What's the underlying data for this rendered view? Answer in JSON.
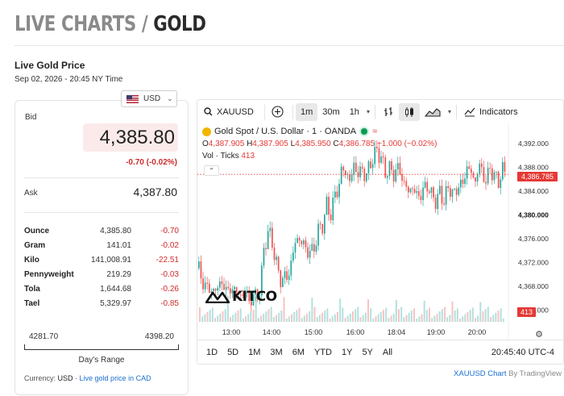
{
  "page": {
    "title_part1": "LIVE CHARTS / ",
    "title_part2": "GOLD"
  },
  "header": {
    "subtitle": "Live Gold Price",
    "date": "Sep 02, 2026 - 20:45 NY Time"
  },
  "currency_select": {
    "value": "USD"
  },
  "quote": {
    "bid_label": "Bid",
    "bid": "4,385.80",
    "change": "-0.70 (-0.02%)",
    "ask_label": "Ask",
    "ask": "4,387.80"
  },
  "units": [
    {
      "name": "Ounce",
      "value": "4,385.80",
      "change": "-0.70"
    },
    {
      "name": "Gram",
      "value": "141.01",
      "change": "-0.02"
    },
    {
      "name": "Kilo",
      "value": "141,008.91",
      "change": "-22.51"
    },
    {
      "name": "Pennyweight",
      "value": "219.29",
      "change": "-0.03"
    },
    {
      "name": "Tola",
      "value": "1,644.68",
      "change": "-0.26"
    },
    {
      "name": "Tael",
      "value": "5,329.97",
      "change": "-0.85"
    }
  ],
  "range": {
    "low": "4281.70",
    "high": "4398.20",
    "label": "Day's Range"
  },
  "currency_footer": {
    "prefix": "Currency: ",
    "currency": "USD",
    "sep": " · ",
    "link": "Live gold price in CAD"
  },
  "widget": {
    "symbol": "XAUUSD",
    "intervals": [
      "1m",
      "30m",
      "1h"
    ],
    "active_interval": "1m",
    "indicators_label": "Indicators",
    "legend_title": "Gold Spot / U.S. Dollar · 1 · OANDA",
    "ohlc": {
      "o_label": "O",
      "o": "4,387.905",
      "h_label": "H",
      "h": "4,387.905",
      "l_label": "L",
      "l": "4,385.950",
      "c_label": "C",
      "c": "4,386.785",
      "change": "−1.000 (−0.02%)"
    },
    "volume_label": "Vol · Ticks",
    "volume_value": "413",
    "current_price_tag": "4,386.785",
    "volume_tag": "413",
    "logo": "KITCO",
    "range_buttons": [
      "1D",
      "5D",
      "1M",
      "3M",
      "6M",
      "YTD",
      "1Y",
      "5Y",
      "All"
    ],
    "clock": "20:45:40 UTC-4",
    "colors": {
      "up": "#26a69a",
      "down": "#ef5350",
      "accent": "#e53935"
    }
  },
  "attribution": {
    "link": "XAUUSD Chart",
    "suffix": " By TradingView"
  },
  "chart_data": {
    "type": "candlestick",
    "x_ticks": [
      "13:00",
      "14:00",
      "15:00",
      "16:00",
      "18:04",
      "19:00",
      "20:00"
    ],
    "y_ticks": [
      "4,392.000",
      "4,388.000",
      "4,384.000",
      "4,380.000",
      "4,376.000",
      "4,372.000",
      "4,368.000",
      "4,364.000"
    ],
    "ylim": [
      4362,
      4394
    ],
    "close_path": [
      [
        0,
        4371.0
      ],
      [
        4,
        4369.5
      ],
      [
        8,
        4367.0
      ],
      [
        12,
        4368.5
      ],
      [
        16,
        4366.0
      ],
      [
        20,
        4369.0
      ],
      [
        24,
        4367.5
      ],
      [
        28,
        4368.5
      ],
      [
        32,
        4366.5
      ],
      [
        36,
        4368.0
      ],
      [
        40,
        4367.0
      ],
      [
        44,
        4366.0
      ],
      [
        48,
        4367.5
      ],
      [
        52,
        4365.0
      ],
      [
        56,
        4366.5
      ],
      [
        60,
        4366.0
      ],
      [
        64,
        4368.0
      ],
      [
        68,
        4374.5
      ],
      [
        72,
        4377.5
      ],
      [
        76,
        4375.0
      ],
      [
        80,
        4372.5
      ],
      [
        84,
        4368.5
      ],
      [
        88,
        4370.0
      ],
      [
        92,
        4369.0
      ],
      [
        96,
        4372.5
      ],
      [
        100,
        4375.5
      ],
      [
        104,
        4376.0
      ],
      [
        108,
        4375.0
      ],
      [
        112,
        4374.0
      ],
      [
        116,
        4373.5
      ],
      [
        120,
        4375.0
      ],
      [
        124,
        4377.5
      ],
      [
        128,
        4378.5
      ],
      [
        132,
        4381.5
      ],
      [
        136,
        4380.0
      ],
      [
        140,
        4383.0
      ],
      [
        144,
        4384.5
      ],
      [
        148,
        4388.0
      ],
      [
        152,
        4387.0
      ],
      [
        156,
        4385.5
      ],
      [
        160,
        4388.5
      ],
      [
        164,
        4386.5
      ],
      [
        168,
        4388.0
      ],
      [
        172,
        4386.0
      ],
      [
        176,
        4388.5
      ],
      [
        180,
        4389.5
      ],
      [
        184,
        4391.0
      ],
      [
        188,
        4389.5
      ],
      [
        192,
        4387.0
      ],
      [
        196,
        4388.0
      ],
      [
        200,
        4386.5
      ],
      [
        204,
        4388.0
      ],
      [
        208,
        4387.0
      ],
      [
        212,
        4385.0
      ],
      [
        216,
        4384.0
      ],
      [
        220,
        4384.5
      ],
      [
        224,
        4383.5
      ],
      [
        228,
        4383.0
      ],
      [
        232,
        4384.5
      ],
      [
        236,
        4385.0
      ],
      [
        240,
        4383.0
      ],
      [
        244,
        4382.5
      ],
      [
        248,
        4383.5
      ],
      [
        252,
        4382.5
      ],
      [
        256,
        4384.0
      ],
      [
        260,
        4384.5
      ],
      [
        264,
        4383.0
      ],
      [
        268,
        4385.5
      ],
      [
        272,
        4385.0
      ],
      [
        276,
        4388.0
      ],
      [
        280,
        4387.5
      ],
      [
        284,
        4385.0
      ],
      [
        288,
        4388.5
      ],
      [
        292,
        4387.0
      ],
      [
        296,
        4385.5
      ],
      [
        300,
        4388.0
      ],
      [
        304,
        4386.5
      ],
      [
        308,
        4385.5
      ],
      [
        312,
        4387.5
      ],
      [
        316,
        4386.8
      ]
    ]
  }
}
